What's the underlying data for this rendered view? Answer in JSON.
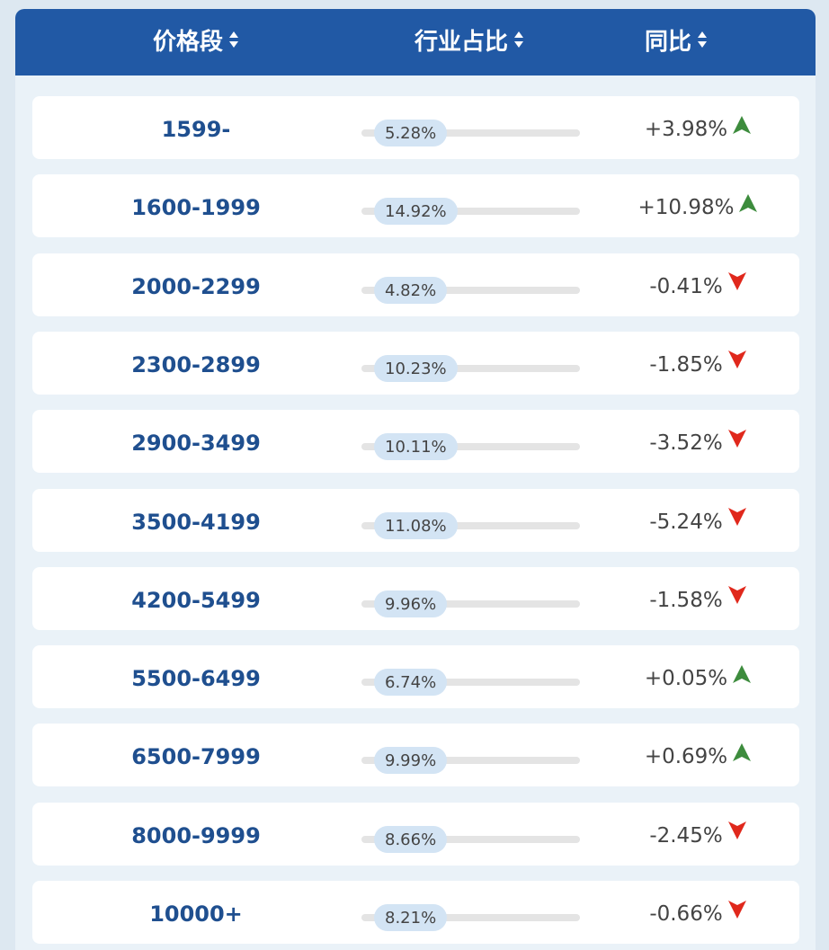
{
  "header": {
    "columns": [
      "价格段",
      "行业占比",
      "同比"
    ]
  },
  "table": {
    "rows": [
      [
        "1599-",
        "5.28%",
        "+3.98%"
      ],
      [
        "1600-1999",
        "14.92%",
        "+10.98%"
      ],
      [
        "2000-2299",
        "4.82%",
        "-0.41%"
      ],
      [
        "2300-2899",
        "10.23%",
        "-1.85%"
      ],
      [
        "2900-3499",
        "10.11%",
        "-3.52%"
      ],
      [
        "3500-4199",
        "11.08%",
        "-5.24%"
      ],
      [
        "4200-5499",
        "9.96%",
        "-1.58%"
      ],
      [
        "5500-6499",
        "6.74%",
        "+0.05%"
      ],
      [
        "6500-7999",
        "9.99%",
        "+0.69%"
      ],
      [
        "8000-9999",
        "8.66%",
        "-2.45%"
      ],
      [
        "10000+",
        "8.21%",
        "-0.66%"
      ]
    ]
  }
}
